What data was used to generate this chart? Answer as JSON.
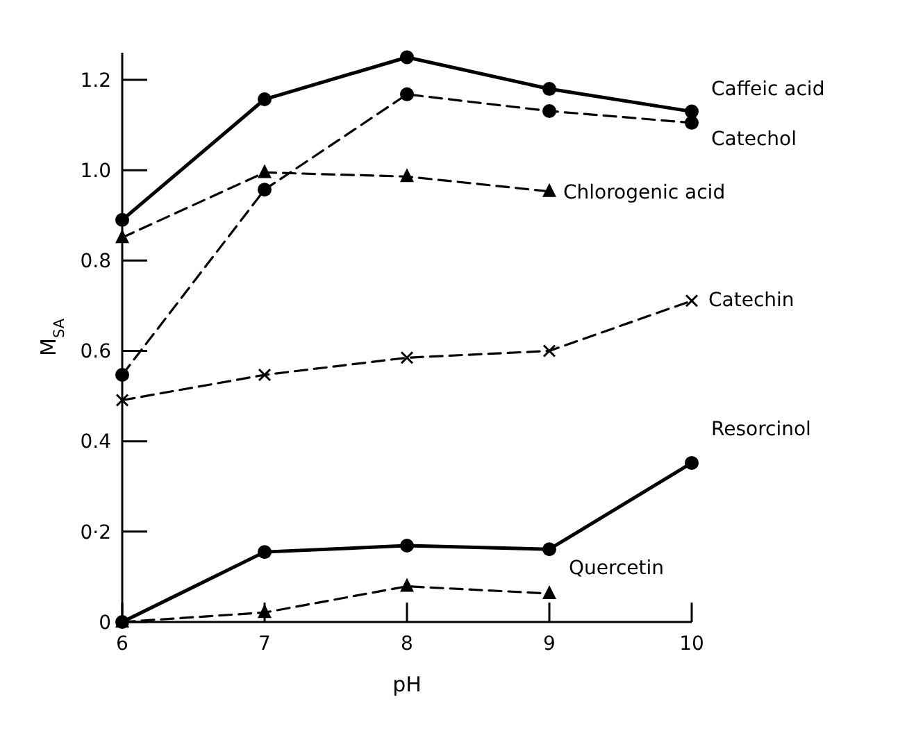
{
  "chart_data": {
    "type": "line",
    "xlabel": "pH",
    "ylabel": "M$_{SA}$",
    "x": [
      6,
      7,
      8,
      9,
      10
    ],
    "xlim": [
      6,
      10
    ],
    "xticks": [
      6,
      7,
      8,
      9,
      10
    ],
    "ylim": [
      0,
      1.26
    ],
    "yticks": [
      0,
      {
        "value": 0.2,
        "label": "0·2"
      },
      0.4,
      0.6,
      0.8,
      {
        "value": 1.0,
        "label": "1.0"
      },
      1.2
    ],
    "grid": false,
    "legend": false,
    "series": [
      {
        "name": "Caffeic acid",
        "color": "#000000",
        "marker": "circle",
        "line_style": "solid",
        "values": [
          0.89,
          1.157,
          1.25,
          1.18,
          1.13
        ]
      },
      {
        "name": "Catechol",
        "color": "#000000",
        "marker": "circle",
        "line_style": "dashed",
        "values": [
          0.547,
          0.957,
          1.168,
          1.131,
          1.105
        ]
      },
      {
        "name": "Chlorogenic acid",
        "color": "#000000",
        "marker": "triangle",
        "line_style": "dashed",
        "values": [
          0.851,
          0.995,
          0.986,
          0.953,
          null
        ]
      },
      {
        "name": "Catechin",
        "color": "#000000",
        "marker": "cross",
        "line_style": "dashed",
        "values": [
          0.491,
          0.547,
          0.585,
          0.6,
          0.711
        ]
      },
      {
        "name": "Resorcinol",
        "color": "#000000",
        "marker": "circle",
        "line_style": "solid",
        "values": [
          0,
          0.155,
          0.169,
          0.161,
          0.352
        ]
      },
      {
        "name": "Quercetin",
        "color": "#000000",
        "marker": "triangle",
        "line_style": "dashed",
        "values": [
          0,
          0.021,
          0.079,
          0.063,
          null
        ]
      }
    ]
  }
}
